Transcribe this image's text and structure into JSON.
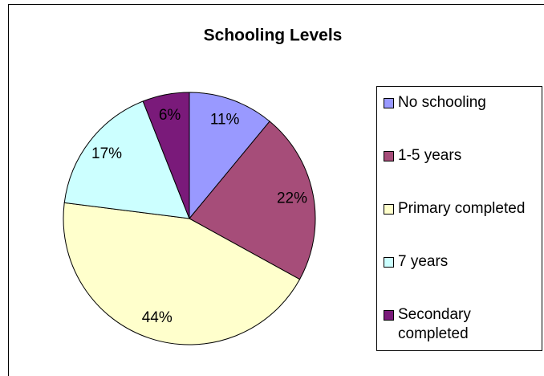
{
  "chart_data": {
    "type": "pie",
    "title": "Schooling Levels",
    "categories": [
      "No schooling",
      "1-5 years",
      "Primary completed",
      "7 years",
      "Secondary completed"
    ],
    "values": [
      11,
      22,
      44,
      17,
      6
    ],
    "value_labels": [
      "11%",
      "22%",
      "44%",
      "17%",
      "6%"
    ],
    "colors": [
      "#9999ff",
      "#a64d79",
      "#ffffcc",
      "#ccffff",
      "#7a1a7a"
    ],
    "legend": "right"
  }
}
